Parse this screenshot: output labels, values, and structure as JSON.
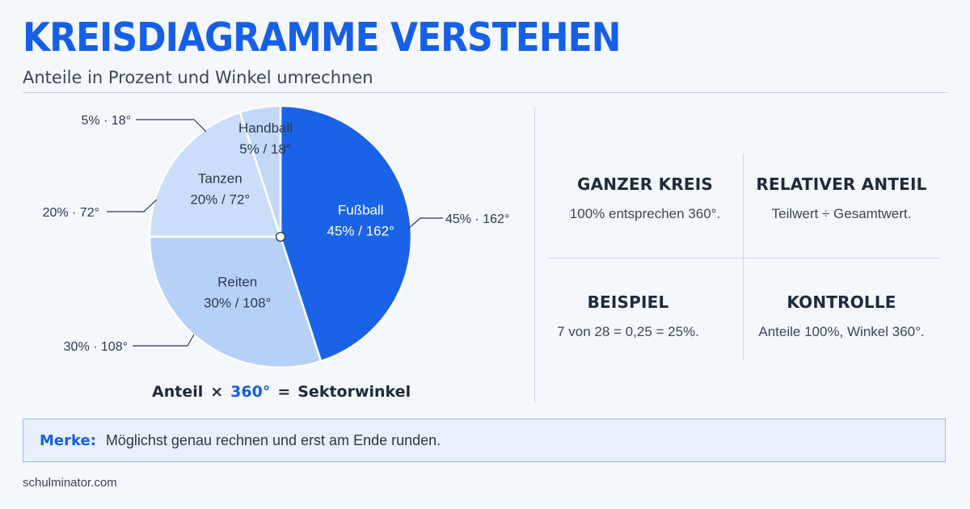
{
  "header": {
    "title": "KREISDIAGRAMME VERSTEHEN",
    "subtitle": "Anteile in Prozent und Winkel umrechnen"
  },
  "chart_data": {
    "type": "pie",
    "slices": [
      {
        "name": "Fußball",
        "percent": 45,
        "degrees": 162,
        "inner_label": "45% / 162°",
        "outer_label": "45% · 162°",
        "color": "#1a63e8"
      },
      {
        "name": "Reiten",
        "percent": 30,
        "degrees": 108,
        "inner_label": "30% / 108°",
        "outer_label": "30% · 108°",
        "color": "#b7d0f7"
      },
      {
        "name": "Tanzen",
        "percent": 20,
        "degrees": 72,
        "inner_label": "20% / 72°",
        "outer_label": "20% · 72°",
        "color": "#cbddf9"
      },
      {
        "name": "Handball",
        "percent": 5,
        "degrees": 18,
        "inner_label": "5% / 18°",
        "outer_label": "5% · 18°",
        "color": "#c3d7f8"
      }
    ]
  },
  "formula": {
    "left": "Anteil",
    "times": "×",
    "highlight": "360°",
    "equals": "=",
    "right": "Sektorwinkel"
  },
  "info_cards": [
    {
      "title": "GANZER KREIS",
      "text": "100% entsprechen 360°."
    },
    {
      "title": "RELATIVER ANTEIL",
      "text": "Teilwert ÷ Gesamtwert."
    },
    {
      "title": "BEISPIEL",
      "text": "7 von 28 = 0,25 = 25%."
    },
    {
      "title": "KONTROLLE",
      "text": "Anteile 100%, Winkel 360°."
    }
  ],
  "note": {
    "label": "Merke:",
    "text": "Möglichst genau rechnen und erst am Ende runden."
  },
  "footer": {
    "text": "schulminator.com"
  },
  "colors": {
    "accent": "#1560e6",
    "note_background": "#e8f0fc"
  }
}
